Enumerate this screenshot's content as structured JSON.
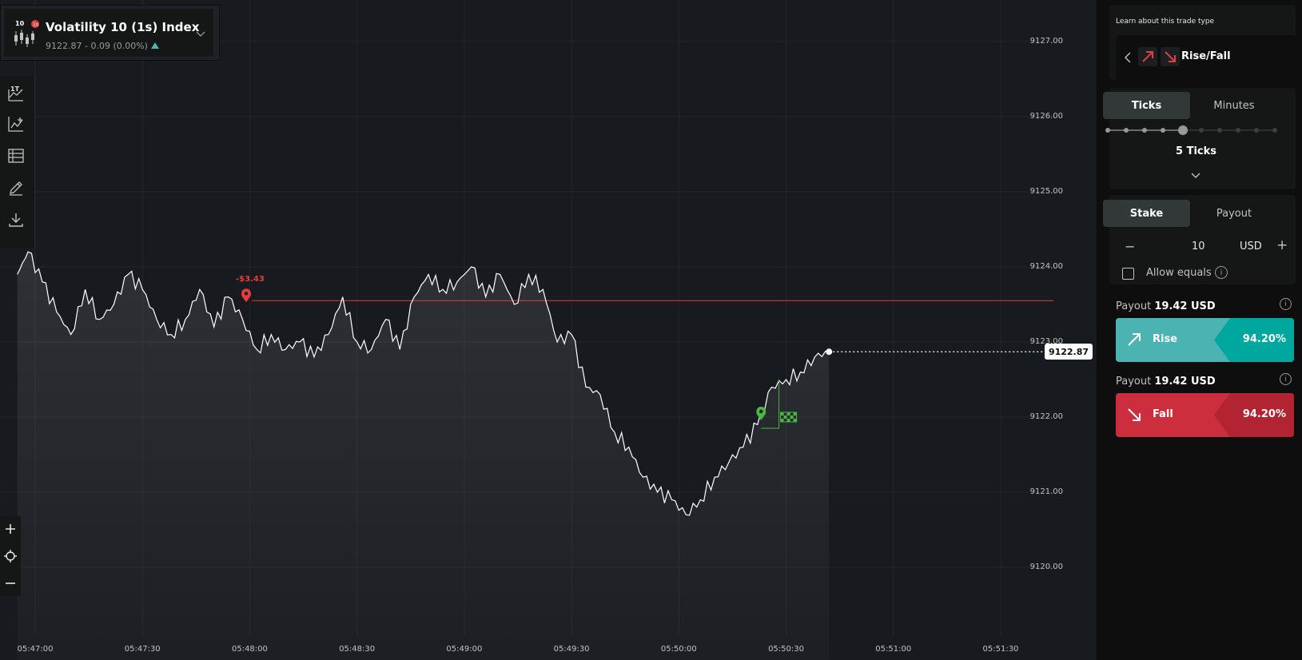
{
  "symbol": {
    "badge": "10",
    "name": "Volatility 10 (1s) Index",
    "quote": "9122.87 - 0.09 (0.00%)",
    "icon": "candlestick-icon"
  },
  "toolbar": {
    "tick_label": "1T",
    "tools": [
      "chart-type-icon",
      "indicators-icon",
      "templates-icon",
      "drawing-tools-icon",
      "download-icon"
    ]
  },
  "chart": {
    "y_ticks": [
      "9127.00",
      "9126.00",
      "9125.00",
      "9124.00",
      "9123.00",
      "9122.00",
      "9121.00",
      "9120.00"
    ],
    "x_ticks": [
      "05:47:00",
      "05:47:30",
      "05:48:00",
      "05:48:30",
      "05:49:00",
      "05:49:30",
      "05:50:00",
      "05:50:30",
      "05:51:00",
      "05:51:30"
    ],
    "current_price": "9122.87",
    "contract_pnl": "-$3.43",
    "barrier": 9123.55,
    "line_color": "#ffffff",
    "barrier_color": "#e43d3d",
    "marker_color": "#4bb543"
  },
  "chart_data": {
    "type": "line",
    "x_ticks": [
      "05:47:00",
      "05:47:30",
      "05:48:00",
      "05:48:30",
      "05:49:00",
      "05:49:30",
      "05:50:00",
      "05:50:30",
      "05:51:00",
      "05:51:30"
    ],
    "y_ticks": [
      "9127.00",
      "9126.00",
      "9125.00",
      "9124.00",
      "9123.00",
      "9122.00",
      "9121.00",
      "9120.00"
    ],
    "ylim": [
      9119.4,
      9127.4
    ],
    "series": [
      {
        "x": [
          "05:46:55",
          "05:46:58",
          "05:47:02",
          "05:47:06",
          "05:47:10",
          "05:47:14",
          "05:47:18",
          "05:47:22",
          "05:47:26",
          "05:47:30",
          "05:47:34",
          "05:47:38",
          "05:47:42",
          "05:47:46",
          "05:47:50",
          "05:47:54",
          "05:47:58",
          "05:48:02",
          "05:48:06",
          "05:48:10",
          "05:48:14",
          "05:48:18",
          "05:48:22",
          "05:48:26",
          "05:48:30",
          "05:48:34",
          "05:48:38",
          "05:48:42",
          "05:48:46",
          "05:48:50",
          "05:48:54",
          "05:48:58",
          "05:49:02",
          "05:49:06",
          "05:49:10",
          "05:49:14",
          "05:49:18",
          "05:49:22",
          "05:49:26",
          "05:49:30",
          "05:49:34",
          "05:49:38",
          "05:49:42",
          "05:49:46",
          "05:49:50",
          "05:49:54",
          "05:49:58",
          "05:50:02",
          "05:50:06",
          "05:50:10",
          "05:50:14",
          "05:50:18",
          "05:50:22",
          "05:50:26",
          "05:50:30",
          "05:50:34",
          "05:50:38",
          "05:50:42"
        ],
        "values": [
          9123.9,
          9124.2,
          9123.8,
          9123.4,
          9123.1,
          9123.7,
          9123.3,
          9123.5,
          9123.9,
          9123.7,
          9123.3,
          9123.1,
          9123.3,
          9123.7,
          9123.2,
          9123.6,
          9123.3,
          9122.9,
          9123.1,
          9122.9,
          9123.0,
          9122.8,
          9123.1,
          9123.6,
          9123.0,
          9122.9,
          9123.3,
          9122.9,
          9123.6,
          9123.9,
          9123.7,
          9123.8,
          9124.0,
          9123.6,
          9123.9,
          9123.5,
          9123.9,
          9123.7,
          9123.0,
          9123.1,
          9122.4,
          9122.3,
          9121.8,
          9121.6,
          9121.2,
          9121.0,
          9120.9,
          9120.7,
          9120.9,
          9121.2,
          9121.4,
          9121.6,
          9121.9,
          9122.4,
          9122.5,
          9122.6,
          9122.8,
          9122.87
        ]
      }
    ]
  },
  "panel": {
    "learn_label": "Learn about this trade type",
    "trade_type": "Rise/Fall",
    "duration_tabs": [
      "Ticks",
      "Minutes"
    ],
    "duration_value": "5 Ticks",
    "stake_tabs": [
      "Stake",
      "Payout"
    ],
    "stake_value": "10",
    "stake_currency": "USD",
    "allow_equals": "Allow equals",
    "rise": {
      "payout_label": "Payout",
      "payout_value": "19.42 USD",
      "label": "Rise",
      "pct": "94.20%",
      "color": "#4bb4b3",
      "tail_color": "#00a79e"
    },
    "fall": {
      "payout_label": "Payout",
      "payout_value": "19.42 USD",
      "label": "Fall",
      "pct": "94.20%",
      "color": "#cc2e3d",
      "tail_color": "#b22432"
    }
  }
}
